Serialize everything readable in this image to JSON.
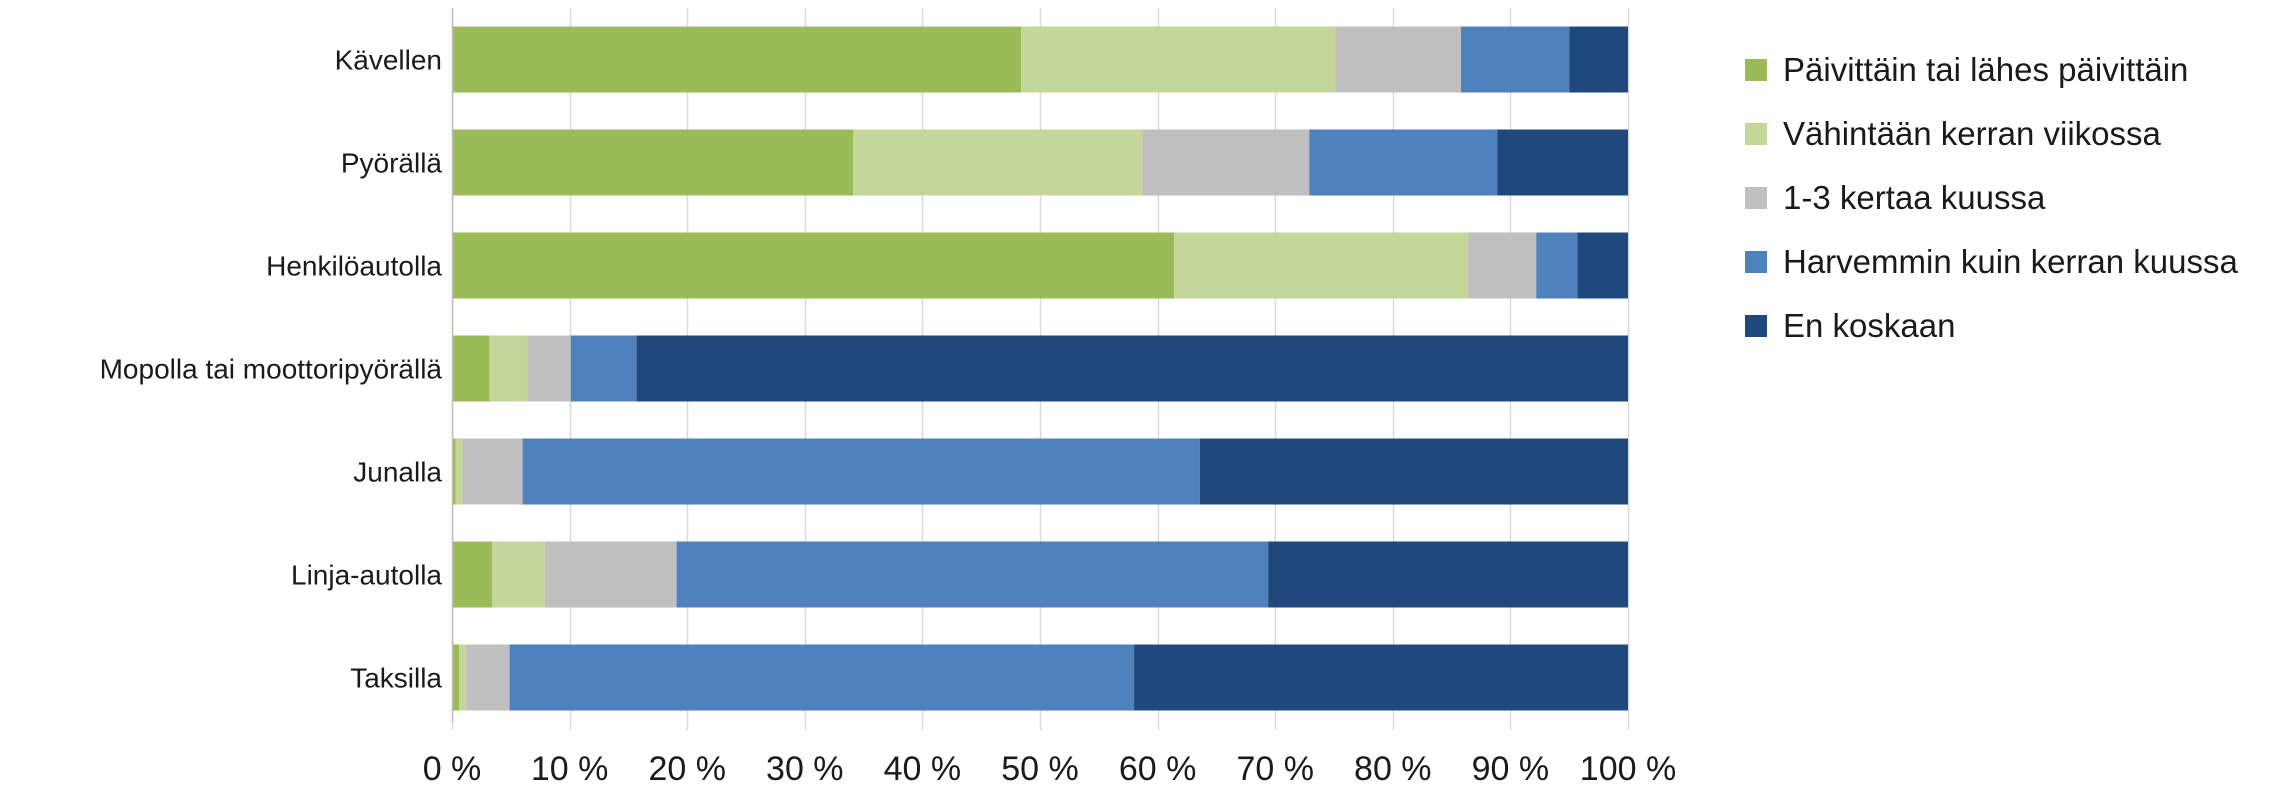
{
  "chart_data": {
    "type": "bar",
    "orientation": "horizontal",
    "stacked": true,
    "percent_stacked": true,
    "title": "",
    "xlabel": "",
    "ylabel": "",
    "xlim": [
      0,
      100
    ],
    "grid": "vertical",
    "legend_position": "right",
    "x_ticks": [
      "0 %",
      "10 %",
      "20 %",
      "30 %",
      "40 %",
      "50 %",
      "60 %",
      "70 %",
      "80 %",
      "90 %",
      "100 %"
    ],
    "categories": [
      "Kävellen",
      "Pyörällä",
      "Henkilöautolla",
      "Mopolla tai moottoripyörällä",
      "Junalla",
      "Linja-autolla",
      "Taksilla"
    ],
    "series": [
      {
        "name": "Päivittäin tai lähes päivittäin",
        "color": "#9bbb59",
        "values": [
          48.4,
          34.1,
          61.4,
          3.2,
          0.3,
          3.4,
          0.6
        ]
      },
      {
        "name": "Vähintään kerran viikossa",
        "color": "#c4d79b",
        "values": [
          26.7,
          24.6,
          25.0,
          3.2,
          0.6,
          4.5,
          0.6
        ]
      },
      {
        "name": "1-3 kertaa kuussa",
        "color": "#bfbfbf",
        "values": [
          10.7,
          14.2,
          5.8,
          3.7,
          5.1,
          11.2,
          3.7
        ]
      },
      {
        "name": "Harvemmin kuin kerran kuussa",
        "color": "#4f81bd",
        "values": [
          9.2,
          16.0,
          3.5,
          5.6,
          57.6,
          50.3,
          53.1
        ]
      },
      {
        "name": "En koskaan",
        "color": "#1f497d",
        "values": [
          5.0,
          11.1,
          4.3,
          84.3,
          36.4,
          30.6,
          42.0
        ]
      }
    ]
  }
}
